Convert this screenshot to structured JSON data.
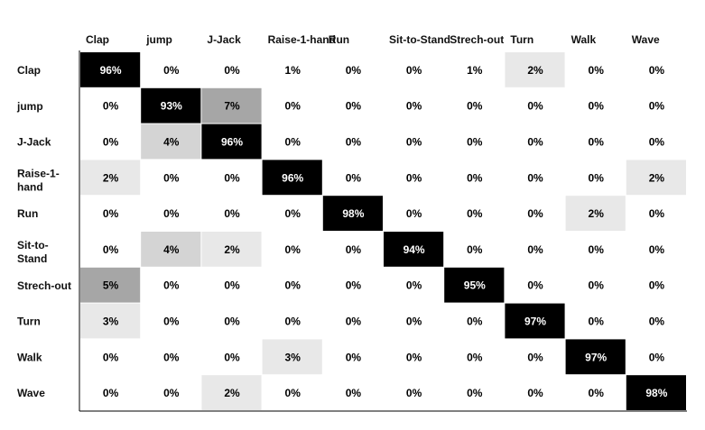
{
  "chart_data": {
    "type": "heatmap",
    "columns": [
      "Clap",
      "jump",
      "J-Jack",
      "Raise-1-hand",
      "Run",
      "Sit-to-Stand",
      "Strech-out",
      "Turn",
      "Walk",
      "Wave"
    ],
    "rows": [
      {
        "label": "Clap",
        "values": [
          96,
          0,
          0,
          1,
          0,
          0,
          1,
          2,
          0,
          0
        ]
      },
      {
        "label": "jump",
        "values": [
          0,
          93,
          7,
          0,
          0,
          0,
          0,
          0,
          0,
          0
        ]
      },
      {
        "label": "J-Jack",
        "values": [
          0,
          4,
          96,
          0,
          0,
          0,
          0,
          0,
          0,
          0
        ]
      },
      {
        "label": "Raise-1-hand",
        "values": [
          2,
          0,
          0,
          96,
          0,
          0,
          0,
          0,
          0,
          2
        ]
      },
      {
        "label": "Run",
        "values": [
          0,
          0,
          0,
          0,
          98,
          0,
          0,
          0,
          2,
          0
        ]
      },
      {
        "label": "Sit-to-Stand",
        "values": [
          0,
          4,
          2,
          0,
          0,
          94,
          0,
          0,
          0,
          0
        ]
      },
      {
        "label": "Strech-out",
        "values": [
          5,
          0,
          0,
          0,
          0,
          0,
          95,
          0,
          0,
          0
        ]
      },
      {
        "label": "Turn",
        "values": [
          3,
          0,
          0,
          0,
          0,
          0,
          0,
          97,
          0,
          0
        ]
      },
      {
        "label": "Walk",
        "values": [
          0,
          0,
          0,
          3,
          0,
          0,
          0,
          0,
          97,
          0
        ]
      },
      {
        "label": "Wave",
        "values": [
          0,
          0,
          2,
          0,
          0,
          0,
          0,
          0,
          0,
          98
        ]
      }
    ],
    "value_suffix": "%",
    "shading": {
      "high": "#000000",
      "mid": "#a6a6a6",
      "light_mid": "#d4d4d4",
      "light": "#e8e8e8",
      "none": "#ffffff"
    },
    "text_colors": {
      "on_dark": "#ffffff",
      "on_light": "#000000"
    }
  }
}
